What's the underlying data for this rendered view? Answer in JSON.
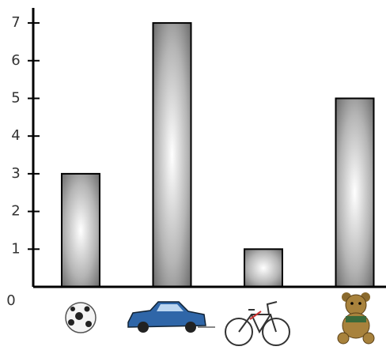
{
  "chart_data": {
    "type": "bar",
    "categories": [
      null,
      null,
      null,
      null
    ],
    "values": [
      3,
      7,
      1,
      5
    ],
    "ylim": [
      0,
      7.4
    ],
    "yticks": [
      0,
      1,
      2,
      3,
      4,
      5,
      6,
      7
    ]
  }
}
